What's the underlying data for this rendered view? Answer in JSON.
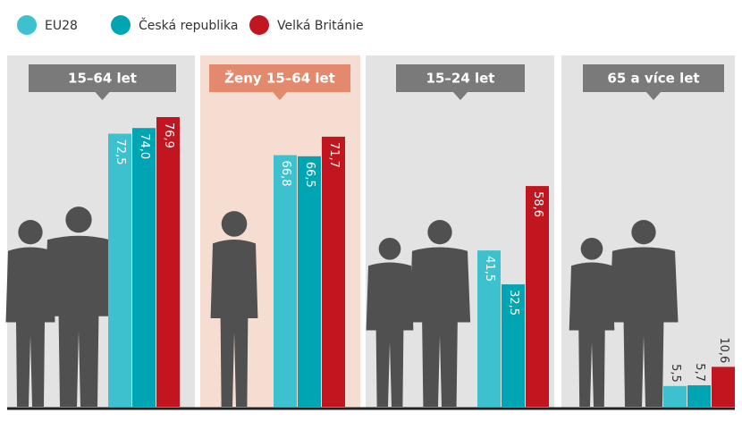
{
  "chart_data": {
    "type": "bar",
    "categories": [
      "15–64 let",
      "Ženy 15–64 let",
      "15–24 let",
      "65 a více let"
    ],
    "series": [
      {
        "name": "EU28",
        "color": "#3dc1cf",
        "values": [
          72.5,
          66.8,
          41.5,
          5.5
        ],
        "value_labels": [
          "72,5",
          "66,8",
          "41,5",
          "5,5"
        ]
      },
      {
        "name": "Česká republika",
        "color": "#00a5b4",
        "values": [
          74.0,
          66.5,
          32.5,
          5.7
        ],
        "value_labels": [
          "74,0",
          "66,5",
          "32,5",
          "5,7"
        ]
      },
      {
        "name": "Velká Británie",
        "color": "#c1161f",
        "values": [
          76.9,
          71.7,
          58.6,
          10.6
        ],
        "value_labels": [
          "76,9",
          "71,7",
          "58,6",
          "10,6"
        ]
      }
    ]
  }
}
